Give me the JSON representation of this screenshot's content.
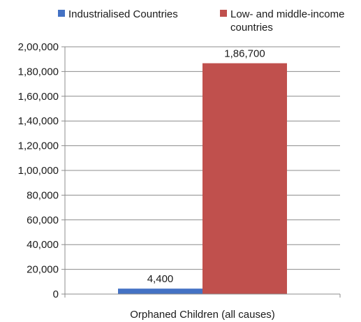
{
  "chart_data": {
    "type": "bar",
    "categories": [
      "Orphaned Children (all causes)"
    ],
    "series": [
      {
        "name": "Industrialised Countries",
        "values": [
          4400
        ],
        "value_labels": [
          "4,400"
        ],
        "color": "#4472c4"
      },
      {
        "name": "Low- and middle-income countries",
        "name_lines": [
          "Low- and middle-income",
          "countries"
        ],
        "values": [
          186700
        ],
        "value_labels": [
          "1,86,700"
        ],
        "color": "#c0504d"
      }
    ],
    "title": "",
    "xlabel": "",
    "ylabel": "",
    "ylim": [
      0,
      200000
    ],
    "yticks": [
      0,
      20000,
      40000,
      60000,
      80000,
      100000,
      120000,
      140000,
      160000,
      180000,
      200000
    ],
    "ytick_labels": [
      "0",
      "20,000",
      "40,000",
      "60,000",
      "80,000",
      "1,00,000",
      "1,20,000",
      "1,40,000",
      "1,60,000",
      "1,80,000",
      "2,00,000"
    ],
    "grid": true,
    "legend_position": "top",
    "grid_color": "#8c8c8c",
    "axis_color": "#8c8c8c"
  }
}
